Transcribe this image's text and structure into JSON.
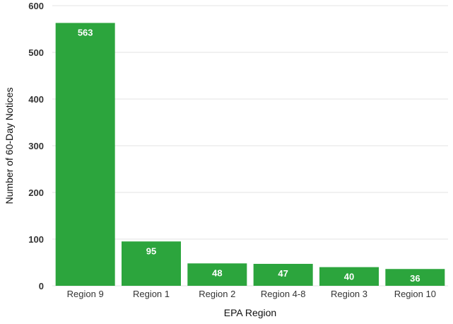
{
  "chart_data": {
    "type": "bar",
    "categories": [
      "Region 9",
      "Region 1",
      "Region 2",
      "Region 4-8",
      "Region 3",
      "Region 10"
    ],
    "values": [
      563,
      95,
      48,
      47,
      40,
      36
    ],
    "xlabel": "EPA Region",
    "ylabel": "Number of 60-Day Notices",
    "ylim": [
      0,
      600
    ],
    "yticks": [
      0,
      100,
      200,
      300,
      400,
      500,
      600
    ],
    "grid": "horizontal",
    "bar_color": "#2ca53d",
    "data_labels": true
  }
}
